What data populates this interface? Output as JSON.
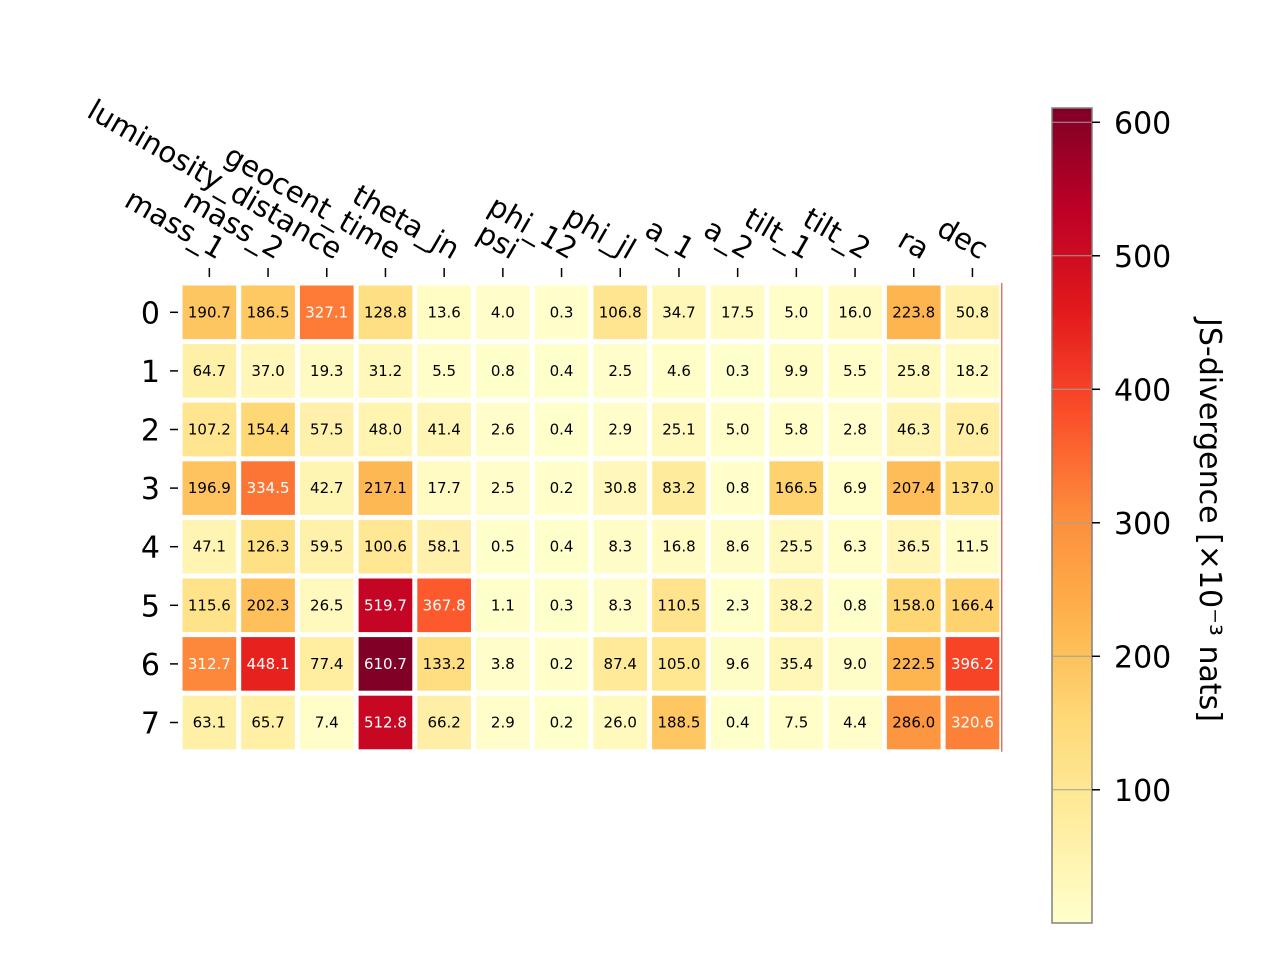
{
  "chart_data": {
    "type": "heatmap",
    "x_labels": [
      "mass_1",
      "mass_2",
      "luminosity_distance",
      "geocent_time",
      "theta_jn",
      "psi",
      "phi_12",
      "phi_jl",
      "a_1",
      "a_2",
      "tilt_1",
      "tilt_2",
      "ra",
      "dec"
    ],
    "y_labels": [
      "0",
      "1",
      "2",
      "3",
      "4",
      "5",
      "6",
      "7"
    ],
    "values": [
      [
        190.7,
        186.5,
        327.1,
        128.8,
        13.6,
        4.0,
        0.3,
        106.8,
        34.7,
        17.5,
        5.0,
        16.0,
        223.8,
        50.8
      ],
      [
        64.7,
        37.0,
        19.3,
        31.2,
        5.5,
        0.8,
        0.4,
        2.5,
        4.6,
        0.3,
        9.9,
        5.5,
        25.8,
        18.2
      ],
      [
        107.2,
        154.4,
        57.5,
        48.0,
        41.4,
        2.6,
        0.4,
        2.9,
        25.1,
        5.0,
        5.8,
        2.8,
        46.3,
        70.6
      ],
      [
        196.9,
        334.5,
        42.7,
        217.1,
        17.7,
        2.5,
        0.2,
        30.8,
        83.2,
        0.8,
        166.5,
        6.9,
        207.4,
        137.0
      ],
      [
        47.1,
        126.3,
        59.5,
        100.6,
        58.1,
        0.5,
        0.4,
        8.3,
        16.8,
        8.6,
        25.5,
        6.3,
        36.5,
        11.5
      ],
      [
        115.6,
        202.3,
        26.5,
        519.7,
        367.8,
        1.1,
        0.3,
        8.3,
        110.5,
        2.3,
        38.2,
        0.8,
        158.0,
        166.4
      ],
      [
        312.7,
        448.1,
        77.4,
        610.7,
        133.2,
        3.8,
        0.2,
        87.4,
        105.0,
        9.6,
        35.4,
        9.0,
        222.5,
        396.2
      ],
      [
        63.1,
        65.7,
        7.4,
        512.8,
        66.2,
        2.9,
        0.2,
        26.0,
        188.5,
        0.4,
        7.5,
        4.4,
        286.0,
        320.6
      ]
    ],
    "colorbar": {
      "label": "JS-divergence [×10⁻³ nats]",
      "range": [
        0.2,
        610.7
      ],
      "ticks": [
        100,
        200,
        300,
        400,
        500,
        600
      ],
      "tick_labels": [
        "100",
        "200",
        "300",
        "400",
        "500",
        "600"
      ],
      "colormap": "YlOrRd"
    },
    "cell_label_threshold": 300
  }
}
